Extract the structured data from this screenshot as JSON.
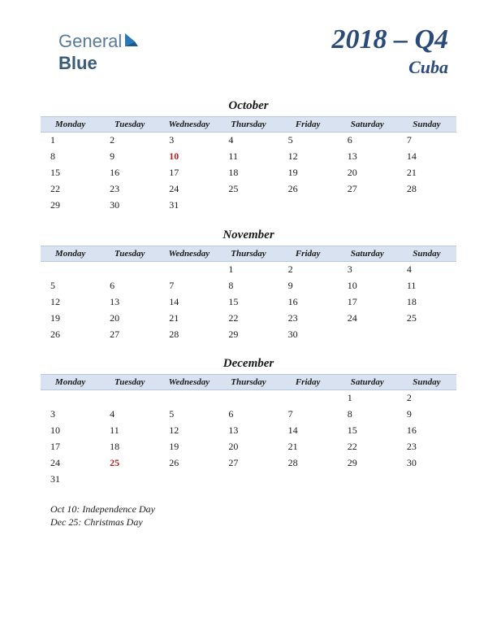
{
  "logo": {
    "part1": "General",
    "part2": "Blue"
  },
  "header": {
    "period": "2018 – Q4",
    "country": "Cuba"
  },
  "weekdays": [
    "Monday",
    "Tuesday",
    "Wednesday",
    "Thursday",
    "Friday",
    "Saturday",
    "Sunday"
  ],
  "colors": {
    "header_bg": "#d8e2f0",
    "header_border": "#b8c8dd",
    "title_color": "#2a4a7a",
    "holiday_color": "#b02020",
    "text_color": "#1a1a1a",
    "logo_light": "#5a7a9a",
    "logo_dark": "#3a5a7a",
    "logo_shape": "#2a78b8"
  },
  "months": [
    {
      "name": "October",
      "weeks": [
        [
          {
            "d": "1"
          },
          {
            "d": "2"
          },
          {
            "d": "3"
          },
          {
            "d": "4"
          },
          {
            "d": "5"
          },
          {
            "d": "6"
          },
          {
            "d": "7"
          }
        ],
        [
          {
            "d": "8"
          },
          {
            "d": "9"
          },
          {
            "d": "10",
            "h": true
          },
          {
            "d": "11"
          },
          {
            "d": "12"
          },
          {
            "d": "13"
          },
          {
            "d": "14"
          }
        ],
        [
          {
            "d": "15"
          },
          {
            "d": "16"
          },
          {
            "d": "17"
          },
          {
            "d": "18"
          },
          {
            "d": "19"
          },
          {
            "d": "20"
          },
          {
            "d": "21"
          }
        ],
        [
          {
            "d": "22"
          },
          {
            "d": "23"
          },
          {
            "d": "24"
          },
          {
            "d": "25"
          },
          {
            "d": "26"
          },
          {
            "d": "27"
          },
          {
            "d": "28"
          }
        ],
        [
          {
            "d": "29"
          },
          {
            "d": "30"
          },
          {
            "d": "31"
          },
          {
            "d": ""
          },
          {
            "d": ""
          },
          {
            "d": ""
          },
          {
            "d": ""
          }
        ]
      ]
    },
    {
      "name": "November",
      "weeks": [
        [
          {
            "d": ""
          },
          {
            "d": ""
          },
          {
            "d": ""
          },
          {
            "d": "1"
          },
          {
            "d": "2"
          },
          {
            "d": "3"
          },
          {
            "d": "4"
          }
        ],
        [
          {
            "d": "5"
          },
          {
            "d": "6"
          },
          {
            "d": "7"
          },
          {
            "d": "8"
          },
          {
            "d": "9"
          },
          {
            "d": "10"
          },
          {
            "d": "11"
          }
        ],
        [
          {
            "d": "12"
          },
          {
            "d": "13"
          },
          {
            "d": "14"
          },
          {
            "d": "15"
          },
          {
            "d": "16"
          },
          {
            "d": "17"
          },
          {
            "d": "18"
          }
        ],
        [
          {
            "d": "19"
          },
          {
            "d": "20"
          },
          {
            "d": "21"
          },
          {
            "d": "22"
          },
          {
            "d": "23"
          },
          {
            "d": "24"
          },
          {
            "d": "25"
          }
        ],
        [
          {
            "d": "26"
          },
          {
            "d": "27"
          },
          {
            "d": "28"
          },
          {
            "d": "29"
          },
          {
            "d": "30"
          },
          {
            "d": ""
          },
          {
            "d": ""
          }
        ]
      ]
    },
    {
      "name": "December",
      "weeks": [
        [
          {
            "d": ""
          },
          {
            "d": ""
          },
          {
            "d": ""
          },
          {
            "d": ""
          },
          {
            "d": ""
          },
          {
            "d": "1"
          },
          {
            "d": "2"
          }
        ],
        [
          {
            "d": "3"
          },
          {
            "d": "4"
          },
          {
            "d": "5"
          },
          {
            "d": "6"
          },
          {
            "d": "7"
          },
          {
            "d": "8"
          },
          {
            "d": "9"
          }
        ],
        [
          {
            "d": "10"
          },
          {
            "d": "11"
          },
          {
            "d": "12"
          },
          {
            "d": "13"
          },
          {
            "d": "14"
          },
          {
            "d": "15"
          },
          {
            "d": "16"
          }
        ],
        [
          {
            "d": "17"
          },
          {
            "d": "18"
          },
          {
            "d": "19"
          },
          {
            "d": "20"
          },
          {
            "d": "21"
          },
          {
            "d": "22"
          },
          {
            "d": "23"
          }
        ],
        [
          {
            "d": "24"
          },
          {
            "d": "25",
            "h": true
          },
          {
            "d": "26"
          },
          {
            "d": "27"
          },
          {
            "d": "28"
          },
          {
            "d": "29"
          },
          {
            "d": "30"
          }
        ],
        [
          {
            "d": "31"
          },
          {
            "d": ""
          },
          {
            "d": ""
          },
          {
            "d": ""
          },
          {
            "d": ""
          },
          {
            "d": ""
          },
          {
            "d": ""
          }
        ]
      ]
    }
  ],
  "footnotes": [
    "Oct 10: Independence Day",
    "Dec 25: Christmas Day"
  ]
}
